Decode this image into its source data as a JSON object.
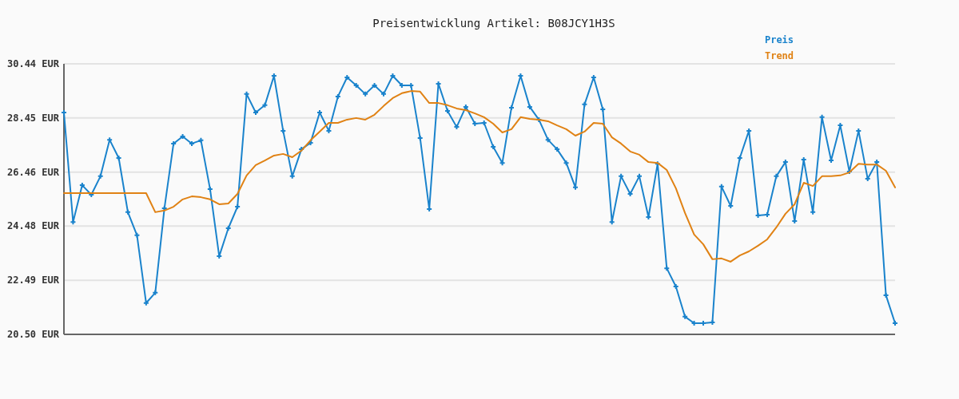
{
  "chart_data": {
    "type": "line",
    "title": "Preisentwicklung Artikel: B08JCY1H3S",
    "categories": [
      null,
      null,
      null,
      null,
      null,
      null,
      null,
      null,
      null,
      null,
      null,
      null,
      null,
      null,
      null,
      null,
      null,
      null,
      null,
      null,
      null,
      null,
      null,
      null,
      null,
      null,
      null,
      null,
      null,
      null,
      null,
      null,
      null,
      null,
      null,
      null,
      null,
      null,
      null,
      null,
      null,
      null,
      null,
      null,
      null,
      null,
      null,
      null,
      null,
      null,
      null,
      null,
      null,
      null,
      null,
      null,
      null,
      null,
      null,
      null,
      null,
      null,
      null,
      null,
      null,
      null,
      null,
      null,
      null,
      null,
      null,
      null,
      null,
      null,
      null,
      null,
      null,
      null,
      null,
      null,
      null,
      null,
      null,
      null,
      null,
      null,
      null,
      null,
      null,
      null,
      null,
      null
    ],
    "series": [
      {
        "name": "Preis",
        "color": "#1a83cc",
        "marker": "cross",
        "values": [
          28.65,
          24.63,
          25.98,
          25.63,
          26.31,
          27.65,
          26.98,
          24.99,
          24.14,
          21.65,
          22.03,
          25.13,
          27.51,
          27.77,
          27.51,
          27.63,
          25.84,
          23.37,
          24.4,
          25.19,
          29.33,
          28.65,
          28.92,
          30.0,
          27.98,
          26.31,
          27.3,
          27.54,
          28.65,
          27.98,
          29.24,
          29.94,
          29.65,
          29.33,
          29.65,
          29.33,
          30.0,
          29.65,
          29.65,
          27.71,
          25.1,
          29.71,
          28.71,
          28.12,
          28.86,
          28.24,
          28.27,
          27.39,
          26.8,
          28.83,
          30.0,
          28.86,
          28.39,
          27.65,
          27.3,
          26.8,
          25.9,
          28.95,
          29.94,
          28.77,
          24.63,
          26.31,
          25.66,
          26.31,
          24.81,
          26.77,
          22.93,
          22.26,
          21.15,
          20.91,
          20.91,
          20.94,
          25.93,
          25.22,
          26.98,
          27.98,
          24.87,
          24.9,
          26.31,
          26.83,
          24.66,
          26.92,
          24.99,
          28.48,
          26.89,
          28.18,
          26.48,
          27.98,
          26.22,
          26.83,
          21.94,
          20.91
        ]
      },
      {
        "name": "Trend",
        "color": "#e08214",
        "marker": "none",
        "values": [
          25.69,
          25.69,
          25.69,
          25.69,
          25.69,
          25.69,
          25.69,
          25.69,
          25.69,
          25.69,
          24.99,
          25.05,
          25.19,
          25.46,
          25.57,
          25.54,
          25.46,
          25.28,
          25.31,
          25.66,
          26.34,
          26.72,
          26.89,
          27.07,
          27.13,
          27.01,
          27.25,
          27.63,
          27.95,
          28.27,
          28.27,
          28.39,
          28.45,
          28.39,
          28.57,
          28.89,
          29.18,
          29.36,
          29.44,
          29.42,
          29.0,
          29.0,
          28.92,
          28.8,
          28.74,
          28.62,
          28.48,
          28.24,
          27.92,
          28.04,
          28.48,
          28.42,
          28.39,
          28.33,
          28.18,
          28.04,
          27.8,
          27.95,
          28.27,
          28.24,
          27.74,
          27.51,
          27.22,
          27.1,
          26.83,
          26.8,
          26.54,
          25.87,
          24.96,
          24.17,
          23.81,
          23.26,
          23.29,
          23.17,
          23.4,
          23.55,
          23.76,
          23.99,
          24.43,
          24.93,
          25.28,
          26.07,
          25.95,
          26.31,
          26.31,
          26.34,
          26.45,
          26.77,
          26.74,
          26.74,
          26.51,
          25.9
        ]
      }
    ],
    "ylim": [
      20.5,
      30.44
    ],
    "yticks": [
      {
        "value": 20.5,
        "label": "20.50 EUR"
      },
      {
        "value": 22.49,
        "label": "22.49 EUR"
      },
      {
        "value": 24.48,
        "label": "24.48 EUR"
      },
      {
        "value": 26.46,
        "label": "26.46 EUR"
      },
      {
        "value": 28.45,
        "label": "28.45 EUR"
      },
      {
        "value": 30.44,
        "label": "30.44 EUR"
      }
    ],
    "grid": "y",
    "legend": "top right",
    "line_style": "solid"
  }
}
